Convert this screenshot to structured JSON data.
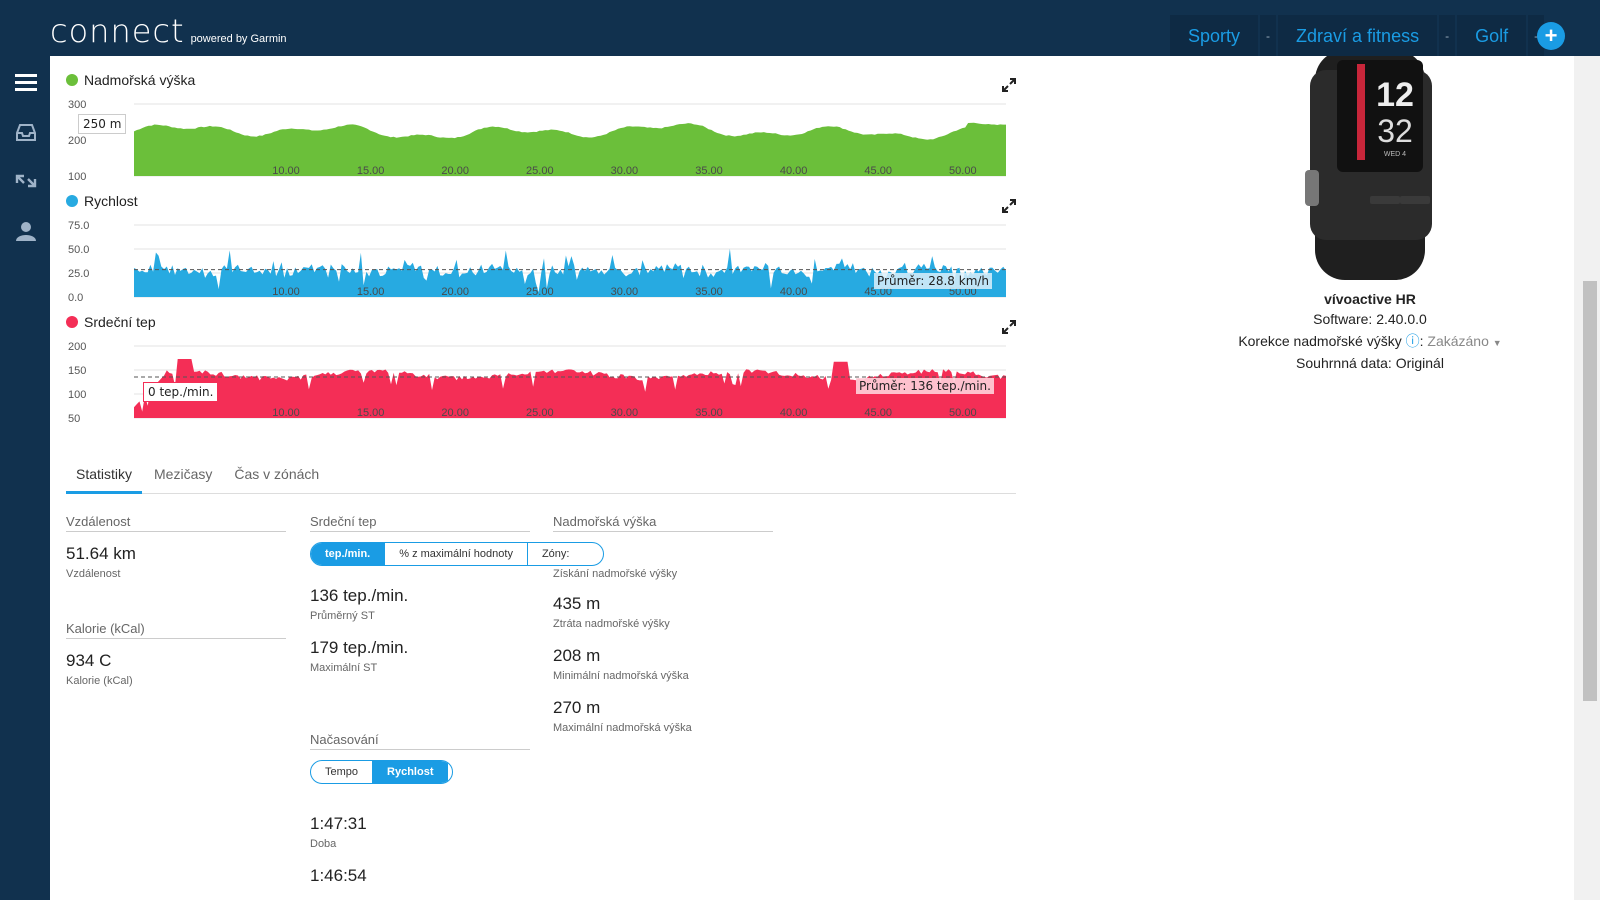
{
  "header": {
    "logo": "connect",
    "logo_sub": "powered by Garmin",
    "nav": [
      {
        "label": "Sporty",
        "sep": "-"
      },
      {
        "label": "Zdraví a fitness",
        "sep": "-"
      },
      {
        "label": "Golf",
        "sep": "-"
      }
    ],
    "plus": "+"
  },
  "sidebar": {
    "icons": [
      "menu-icon",
      "inbox-icon",
      "connections-icon",
      "user-icon"
    ]
  },
  "charts": {
    "elevation": {
      "title": "Nadmořská výška",
      "color": "#6bbf3a",
      "y_ticks": [
        "300",
        "200",
        "100"
      ],
      "x_ticks": [
        "10.00",
        "15.00",
        "20.00",
        "25.00",
        "30.00",
        "35.00",
        "40.00",
        "45.00",
        "50.00"
      ],
      "tooltip": "250 m"
    },
    "speed": {
      "title": "Rychlost",
      "color": "#27aae1",
      "y_ticks": [
        "75.0",
        "50.0",
        "25.0",
        "0.0"
      ],
      "x_ticks": [
        "10.00",
        "15.00",
        "20.00",
        "25.00",
        "30.00",
        "35.00",
        "40.00",
        "45.00",
        "50.00"
      ],
      "average": "Průměr: 28.8 km/h"
    },
    "heart": {
      "title": "Srdeční tep",
      "color": "#f42e56",
      "y_ticks": [
        "200",
        "150",
        "100",
        "50"
      ],
      "x_ticks": [
        "10.00",
        "15.00",
        "20.00",
        "25.00",
        "30.00",
        "35.00",
        "40.00",
        "45.00",
        "50.00"
      ],
      "tooltip": "0 tep./min.",
      "average": "Průměr: 136 tep./min."
    }
  },
  "tabs": [
    "Statistiky",
    "Mezičasy",
    "Čas v zónách"
  ],
  "stats": {
    "distance": {
      "header": "Vzdálenost",
      "value": "51.64 km",
      "label": "Vzdálenost"
    },
    "calories": {
      "header": "Kalorie (kCal)",
      "value": "934 C",
      "label": "Kalorie (kCal)"
    },
    "heart": {
      "header": "Srdeční tep",
      "toggle": [
        "tep./min.",
        "% z maximální hodnoty",
        "Zóny:"
      ],
      "avg_value": "136 tep./min.",
      "avg_label": "Průměrný ST",
      "max_value": "179 tep./min.",
      "max_label": "Maximální ST"
    },
    "timing": {
      "header": "Načasování",
      "toggle": [
        "Tempo",
        "Rychlost"
      ],
      "duration_value": "1:47:31",
      "duration_label": "Doba",
      "moving_value": "1:46:54"
    },
    "elevation": {
      "header": "Nadmořská výška",
      "gain_label": "Získání nadmořské výšky",
      "gain_value": "435 m",
      "loss_label": "Ztráta nadmořské výšky",
      "loss_value": "208 m",
      "min_label": "Minimální nadmořská výška",
      "min_value": "270 m",
      "max_label": "Maximální nadmořská výška"
    }
  },
  "device": {
    "name": "vívoactive HR",
    "software_label": "Software:",
    "software_value": "2.40.0.0",
    "elev_corr_label": "Korekce nadmořské výšky",
    "elev_corr_value": "Zakázáno",
    "summary_label": "Souhrnná data:",
    "summary_value": "Originál",
    "watch_time_h": "12",
    "watch_time_m": "32",
    "watch_date": "WED 4"
  }
}
